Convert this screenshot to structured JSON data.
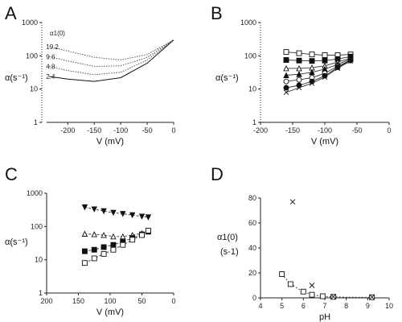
{
  "chart_data": [
    {
      "panel": "A",
      "type": "line",
      "xlabel": "V (mV)",
      "ylabel": "α(s⁻¹)",
      "xlim": [
        -240,
        0
      ],
      "ylim": [
        1,
        1000
      ],
      "yscale": "log",
      "x_ticks": [
        "-200",
        "-150",
        "-100",
        "-50",
        "0"
      ],
      "y_ticks": [
        "1",
        "10",
        "100",
        "1000"
      ],
      "legend_title": "α1(0)",
      "series": [
        {
          "name": "19.2",
          "x": [
            -235,
            -200,
            -150,
            -100,
            -50,
            0
          ],
          "y": [
            190,
            140,
            90,
            75,
            110,
            300
          ]
        },
        {
          "name": "9.6",
          "x": [
            -235,
            -200,
            -150,
            -100,
            -50,
            0
          ],
          "y": [
            95,
            70,
            48,
            50,
            90,
            300
          ]
        },
        {
          "name": "4.8",
          "x": [
            -235,
            -200,
            -150,
            -100,
            -50,
            0
          ],
          "y": [
            48,
            36,
            27,
            32,
            75,
            300
          ]
        },
        {
          "name": "2.4",
          "x": [
            -235,
            -200,
            -150,
            -100,
            -50,
            0
          ],
          "y": [
            24,
            20,
            17,
            22,
            60,
            300
          ]
        }
      ]
    },
    {
      "panel": "B",
      "type": "scatter",
      "xlabel": "V (mV)",
      "ylabel": "α(s⁻¹)",
      "xlim": [
        -200,
        0
      ],
      "ylim": [
        1,
        1000
      ],
      "yscale": "log",
      "x_ticks": [
        "-200",
        "-150",
        "-100",
        "-50",
        "0"
      ],
      "y_ticks": [
        "1",
        "10",
        "100",
        "1000"
      ],
      "x": [
        -160,
        -140,
        -120,
        -100,
        -80,
        -60
      ],
      "series": [
        {
          "marker": "open-square",
          "y": [
            130,
            120,
            110,
            105,
            105,
            110
          ]
        },
        {
          "marker": "filled-square",
          "y": [
            75,
            72,
            70,
            72,
            80,
            95
          ]
        },
        {
          "marker": "open-triangle",
          "y": [
            42,
            42,
            44,
            50,
            65,
            85
          ]
        },
        {
          "marker": "filled-triangle",
          "y": [
            26,
            28,
            32,
            40,
            55,
            80
          ]
        },
        {
          "marker": "open-circle",
          "y": [
            17,
            19,
            22,
            30,
            48,
            75
          ]
        },
        {
          "marker": "filled-circle",
          "y": [
            11,
            13,
            17,
            25,
            45,
            72
          ]
        },
        {
          "marker": "cross",
          "y": [
            8,
            11,
            15,
            23,
            42,
            70
          ]
        }
      ]
    },
    {
      "panel": "C",
      "type": "scatter",
      "xlabel": "V (mV)",
      "ylabel": "α(s⁻¹)",
      "xlim": [
        200,
        0
      ],
      "ylim": [
        1,
        1000
      ],
      "yscale": "log",
      "x_ticks": [
        "200",
        "150",
        "100",
        "50",
        "0"
      ],
      "y_ticks": [
        "1",
        "10",
        "100",
        "1000"
      ],
      "x": [
        140,
        125,
        110,
        95,
        80,
        65,
        50,
        40
      ],
      "series": [
        {
          "marker": "filled-triangle-down",
          "y": [
            380,
            330,
            290,
            260,
            240,
            220,
            200,
            190
          ]
        },
        {
          "marker": "open-triangle",
          "y": [
            60,
            58,
            55,
            50,
            50,
            55,
            62,
            70
          ]
        },
        {
          "marker": "filled-square",
          "y": [
            18,
            20,
            24,
            28,
            35,
            45,
            58,
            70
          ]
        },
        {
          "marker": "open-square",
          "y": [
            8,
            11,
            15,
            20,
            28,
            40,
            55,
            75
          ]
        }
      ]
    },
    {
      "panel": "D",
      "type": "scatter",
      "xlabel": "pH",
      "ylabel": "α1(0) (s-1)",
      "xlim": [
        4,
        10
      ],
      "ylim": [
        0,
        80
      ],
      "x_ticks": [
        "4",
        "5",
        "6",
        "7",
        "8",
        "9",
        "10"
      ],
      "y_ticks": [
        "0",
        "20",
        "40",
        "60",
        "80"
      ],
      "series": [
        {
          "marker": "open-square",
          "x": [
            5.0,
            5.4,
            6.0,
            6.4,
            6.9,
            7.4,
            9.2
          ],
          "y": [
            19,
            11,
            5,
            2.5,
            1.3,
            0.8,
            0.5
          ]
        },
        {
          "marker": "cross",
          "x": [
            5.5,
            6.4,
            7.4,
            9.2
          ],
          "y": [
            77,
            10,
            1,
            0.6
          ]
        }
      ],
      "fit": {
        "x": [
          5.0,
          5.4,
          6.0,
          6.5,
          7.0,
          8.0,
          9.2
        ],
        "y": [
          19,
          11,
          5,
          2.2,
          1.1,
          0.5,
          0.4
        ]
      }
    }
  ]
}
